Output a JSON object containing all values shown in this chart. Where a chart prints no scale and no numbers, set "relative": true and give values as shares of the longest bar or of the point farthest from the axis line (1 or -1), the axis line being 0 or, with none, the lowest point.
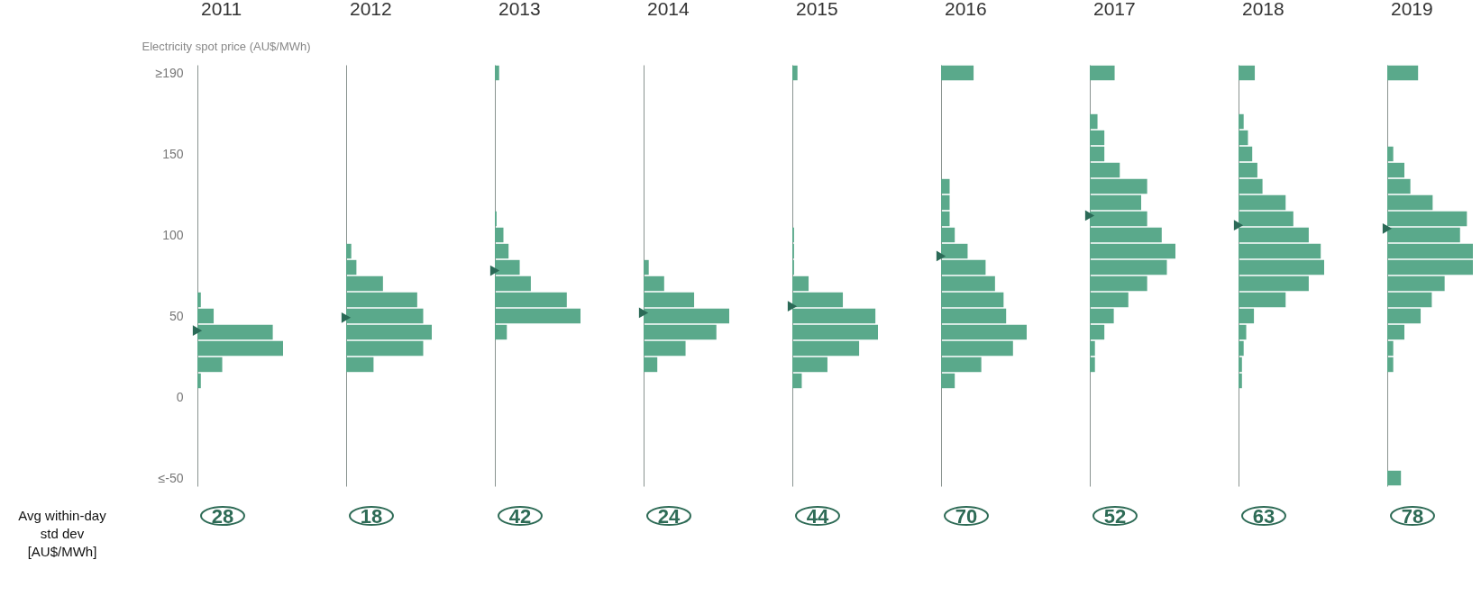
{
  "chart_data": [
    {
      "type": "bar",
      "orientation": "horizontal",
      "relative": true,
      "title": "2011",
      "ylabel": "Electricity spot price (AU$/MWh)",
      "x": [
        -50,
        -40,
        -30,
        -20,
        -10,
        0,
        10,
        20,
        30,
        40,
        50,
        60,
        70,
        80,
        90,
        100,
        110,
        120,
        130,
        140,
        150,
        160,
        170,
        180,
        190,
        200
      ],
      "ylim": [
        -55,
        205
      ],
      "yticks": [
        {
          "value": -50,
          "label": "≤-50"
        },
        0,
        50,
        100,
        150,
        {
          "value": 200,
          "label": "≥190"
        }
      ],
      "tick_labels": "y",
      "annotations": [
        "28",
        "Avg within-day\nstd dev\n[AU$/MWh]"
      ],
      "series": [
        {
          "color": "#5aa98b",
          "values": [
            0,
            0,
            0,
            0,
            0,
            0,
            0.04,
            0.29,
            1,
            0.88,
            0.19,
            0.04,
            0,
            0,
            0,
            0,
            0,
            0,
            0,
            0,
            0,
            0,
            0,
            0,
            0,
            0
          ]
        },
        {
          "type": "scatter",
          "marker": "triangle",
          "color": "#2b6a57",
          "x": [
            41
          ],
          "values": [
            0
          ]
        }
      ]
    },
    {
      "type": "bar",
      "orientation": "horizontal",
      "relative": true,
      "title": "2012",
      "x": [
        -50,
        -40,
        -30,
        -20,
        -10,
        0,
        10,
        20,
        30,
        40,
        50,
        60,
        70,
        80,
        90,
        100,
        110,
        120,
        130,
        140,
        150,
        160,
        170,
        180,
        190,
        200
      ],
      "ylim": [
        -55,
        205
      ],
      "tick_labels": false,
      "annotations": [
        "18"
      ],
      "series": [
        {
          "color": "#5aa98b",
          "values": [
            0,
            0,
            0,
            0,
            0,
            0,
            0,
            0.32,
            0.9,
            1,
            0.9,
            0.83,
            0.43,
            0.12,
            0.06,
            0,
            0,
            0,
            0,
            0,
            0,
            0,
            0,
            0,
            0,
            0
          ]
        },
        {
          "type": "scatter",
          "marker": "triangle",
          "color": "#2b6a57",
          "x": [
            49
          ],
          "values": [
            0
          ]
        }
      ]
    },
    {
      "type": "bar",
      "orientation": "horizontal",
      "relative": true,
      "title": "2013",
      "x": [
        -50,
        -40,
        -30,
        -20,
        -10,
        0,
        10,
        20,
        30,
        40,
        50,
        60,
        70,
        80,
        90,
        100,
        110,
        120,
        130,
        140,
        150,
        160,
        170,
        180,
        190,
        200
      ],
      "ylim": [
        -55,
        205
      ],
      "tick_labels": false,
      "annotations": [
        "42"
      ],
      "series": [
        {
          "color": "#5aa98b",
          "values": [
            0,
            0,
            0,
            0,
            0,
            0,
            0,
            0,
            0,
            0.14,
            1,
            0.84,
            0.42,
            0.29,
            0.16,
            0.1,
            0.02,
            0,
            0,
            0,
            0,
            0,
            0,
            0,
            0,
            0.05
          ]
        },
        {
          "type": "scatter",
          "marker": "triangle",
          "color": "#2b6a57",
          "x": [
            78
          ],
          "values": [
            0
          ]
        }
      ]
    },
    {
      "type": "bar",
      "orientation": "horizontal",
      "relative": true,
      "title": "2014",
      "x": [
        -50,
        -40,
        -30,
        -20,
        -10,
        0,
        10,
        20,
        30,
        40,
        50,
        60,
        70,
        80,
        90,
        100,
        110,
        120,
        130,
        140,
        150,
        160,
        170,
        180,
        190,
        200
      ],
      "ylim": [
        -55,
        205
      ],
      "tick_labels": false,
      "annotations": [
        "24"
      ],
      "series": [
        {
          "color": "#5aa98b",
          "values": [
            0,
            0,
            0,
            0,
            0,
            0,
            0,
            0.16,
            0.49,
            0.85,
            1,
            0.59,
            0.24,
            0.06,
            0,
            0,
            0,
            0,
            0,
            0,
            0,
            0,
            0,
            0,
            0,
            0
          ]
        },
        {
          "type": "scatter",
          "marker": "triangle",
          "color": "#2b6a57",
          "x": [
            52
          ],
          "values": [
            0
          ]
        }
      ]
    },
    {
      "type": "bar",
      "orientation": "horizontal",
      "relative": true,
      "title": "2015",
      "x": [
        -50,
        -40,
        -30,
        -20,
        -10,
        0,
        10,
        20,
        30,
        40,
        50,
        60,
        70,
        80,
        90,
        100,
        110,
        120,
        130,
        140,
        150,
        160,
        170,
        180,
        190,
        200
      ],
      "ylim": [
        -55,
        205
      ],
      "tick_labels": false,
      "annotations": [
        "44"
      ],
      "series": [
        {
          "color": "#5aa98b",
          "values": [
            0,
            0,
            0,
            0,
            0,
            0,
            0.11,
            0.41,
            0.78,
            1,
            0.97,
            0.59,
            0.19,
            0.02,
            0.02,
            0.02,
            0,
            0,
            0,
            0,
            0,
            0,
            0,
            0,
            0,
            0.06
          ]
        },
        {
          "type": "scatter",
          "marker": "triangle",
          "color": "#2b6a57",
          "x": [
            56
          ],
          "values": [
            0
          ]
        }
      ]
    },
    {
      "type": "bar",
      "orientation": "horizontal",
      "relative": true,
      "title": "2016",
      "x": [
        -50,
        -40,
        -30,
        -20,
        -10,
        0,
        10,
        20,
        30,
        40,
        50,
        60,
        70,
        80,
        90,
        100,
        110,
        120,
        130,
        140,
        150,
        160,
        170,
        180,
        190,
        200
      ],
      "ylim": [
        -55,
        205
      ],
      "tick_labels": false,
      "annotations": [
        "70"
      ],
      "series": [
        {
          "color": "#5aa98b",
          "values": [
            0,
            0,
            0,
            0,
            0,
            0,
            0.16,
            0.47,
            0.84,
            1,
            0.76,
            0.73,
            0.63,
            0.52,
            0.31,
            0.16,
            0.1,
            0.1,
            0.1,
            0,
            0,
            0,
            0,
            0,
            0,
            0.38
          ]
        },
        {
          "type": "scatter",
          "marker": "triangle",
          "color": "#2b6a57",
          "x": [
            87
          ],
          "values": [
            0
          ]
        }
      ]
    },
    {
      "type": "bar",
      "orientation": "horizontal",
      "relative": true,
      "title": "2017",
      "x": [
        -50,
        -40,
        -30,
        -20,
        -10,
        0,
        10,
        20,
        30,
        40,
        50,
        60,
        70,
        80,
        90,
        100,
        110,
        120,
        130,
        140,
        150,
        160,
        170,
        180,
        190,
        200
      ],
      "ylim": [
        -55,
        205
      ],
      "tick_labels": false,
      "annotations": [
        "52"
      ],
      "series": [
        {
          "color": "#5aa98b",
          "values": [
            0,
            0,
            0,
            0,
            0,
            0,
            0,
            0.06,
            0.06,
            0.17,
            0.28,
            0.45,
            0.67,
            0.9,
            1,
            0.84,
            0.67,
            0.6,
            0.67,
            0.35,
            0.17,
            0.17,
            0.09,
            0,
            0,
            0.29
          ]
        },
        {
          "type": "scatter",
          "marker": "triangle",
          "color": "#2b6a57",
          "x": [
            112
          ],
          "values": [
            0
          ]
        }
      ]
    },
    {
      "type": "bar",
      "orientation": "horizontal",
      "relative": true,
      "title": "2018",
      "x": [
        -50,
        -40,
        -30,
        -20,
        -10,
        0,
        10,
        20,
        30,
        40,
        50,
        60,
        70,
        80,
        90,
        100,
        110,
        120,
        130,
        140,
        150,
        160,
        170,
        180,
        190,
        200
      ],
      "ylim": [
        -55,
        205
      ],
      "tick_labels": false,
      "annotations": [
        "63"
      ],
      "series": [
        {
          "color": "#5aa98b",
          "values": [
            0,
            0,
            0,
            0,
            0,
            0,
            0.04,
            0.04,
            0.06,
            0.09,
            0.18,
            0.55,
            0.82,
            1,
            0.96,
            0.82,
            0.64,
            0.55,
            0.28,
            0.22,
            0.16,
            0.11,
            0.06,
            0,
            0,
            0.19
          ]
        },
        {
          "type": "scatter",
          "marker": "triangle",
          "color": "#2b6a57",
          "x": [
            106
          ],
          "values": [
            0
          ]
        }
      ]
    },
    {
      "type": "bar",
      "orientation": "horizontal",
      "relative": true,
      "title": "2019",
      "x": [
        -50,
        -40,
        -30,
        -20,
        -10,
        0,
        10,
        20,
        30,
        40,
        50,
        60,
        70,
        80,
        90,
        100,
        110,
        120,
        130,
        140,
        150,
        160,
        170,
        180,
        190,
        200
      ],
      "ylim": [
        -55,
        205
      ],
      "tick_labels": false,
      "annotations": [
        "78"
      ],
      "series": [
        {
          "color": "#5aa98b",
          "values": [
            0.16,
            0,
            0,
            0,
            0,
            0,
            0,
            0.07,
            0.07,
            0.2,
            0.39,
            0.52,
            0.67,
            1,
            1,
            0.85,
            0.93,
            0.53,
            0.27,
            0.2,
            0.07,
            0,
            0,
            0,
            0,
            0.36
          ]
        },
        {
          "type": "scatter",
          "marker": "triangle",
          "color": "#2b6a57",
          "x": [
            104
          ],
          "values": [
            0
          ]
        }
      ]
    }
  ]
}
